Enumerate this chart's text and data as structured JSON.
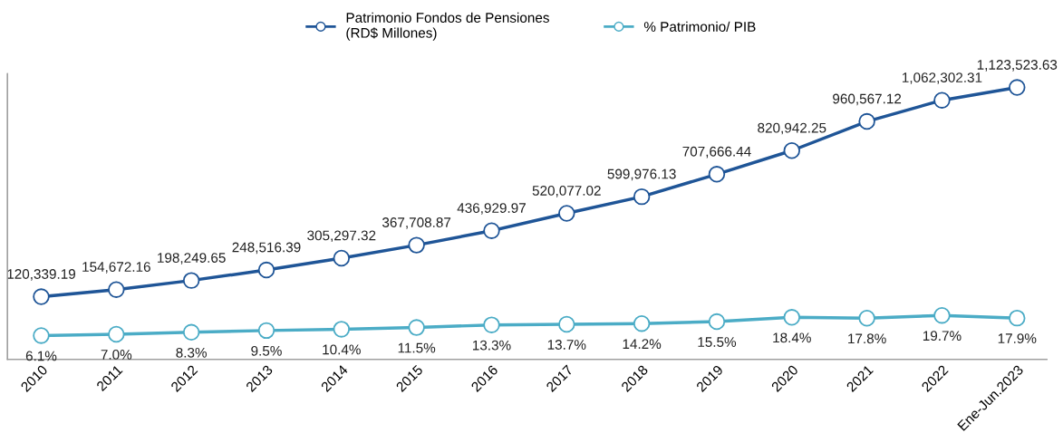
{
  "chart_data": {
    "type": "line",
    "categories": [
      "2010",
      "2011",
      "2012",
      "2013",
      "2014",
      "2015",
      "2016",
      "2017",
      "2018",
      "2019",
      "2020",
      "2021",
      "2022",
      "Ene-Jun.2023"
    ],
    "series": [
      {
        "name": "Patrimonio Fondos de Pensiones\n(RD$ Millones)",
        "color": "#1f5597",
        "values": [
          120339.19,
          154672.16,
          198249.65,
          248516.39,
          305297.32,
          367708.87,
          436929.97,
          520077.02,
          599976.13,
          707666.44,
          820942.25,
          960567.12,
          1062302.31,
          1123523.63
        ],
        "value_labels": [
          "120,339.19",
          "154,672.16",
          "198,249.65",
          "248,516.39",
          "305,297.32",
          "367,708.87",
          "436,929.97",
          "520,077.02",
          "599,976.13",
          "707,666.44",
          "820,942.25",
          "960,567.12",
          "1,062,302.31",
          "1,123,523.63"
        ]
      },
      {
        "name": "% Patrimonio/ PIB",
        "color": "#4bacc6",
        "axis": "y2",
        "values": [
          6.1,
          7.0,
          8.3,
          9.5,
          10.4,
          11.5,
          13.3,
          13.7,
          14.2,
          15.5,
          18.4,
          17.8,
          19.7,
          17.9
        ],
        "value_labels": [
          "6.1%",
          "7.0%",
          "8.3%",
          "9.5%",
          "10.4%",
          "11.5%",
          "13.3%",
          "13.7%",
          "14.2%",
          "15.5%",
          "18.4%",
          "17.8%",
          "19.7%",
          "17.9%"
        ]
      }
    ],
    "ylim": [
      -180000,
      1190000
    ],
    "y2lim": [
      -10,
      183
    ],
    "data_labels": true,
    "marker": "circle",
    "line_style": "solid",
    "legend": "top",
    "grid": false,
    "tick_labels": "x"
  }
}
